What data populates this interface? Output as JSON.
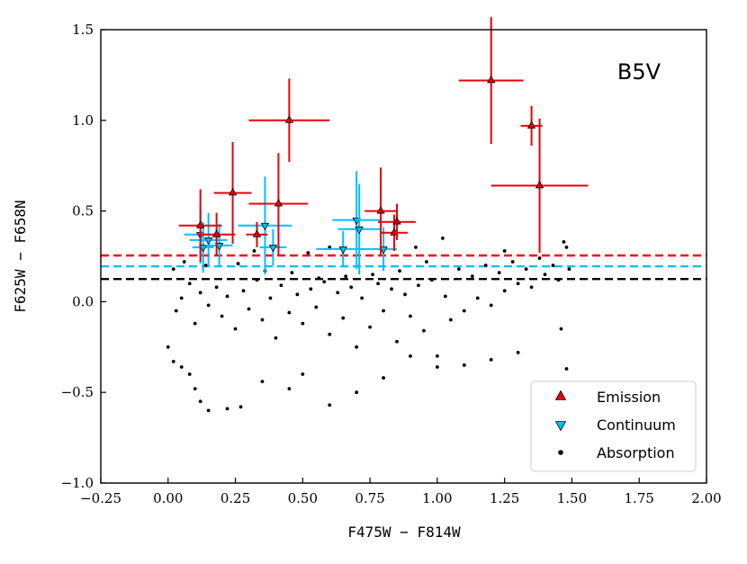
{
  "chart_data": {
    "type": "scatter",
    "title": "",
    "panel_label": "B5V",
    "xlabel": "F475W − F814W",
    "ylabel": "F625W − F658N",
    "xlim": [
      -0.25,
      2.0
    ],
    "ylim": [
      -1.0,
      1.5
    ],
    "x_ticks": [
      -0.25,
      0.0,
      0.25,
      0.5,
      0.75,
      1.0,
      1.25,
      1.5,
      1.75,
      2.0
    ],
    "x_tick_labels": [
      "−0.25",
      "0.00",
      "0.25",
      "0.50",
      "0.75",
      "1.00",
      "1.25",
      "1.50",
      "1.75",
      "2.00"
    ],
    "y_ticks": [
      -1.0,
      -0.5,
      0.0,
      0.5,
      1.0,
      1.5
    ],
    "y_tick_labels": [
      "−1.0",
      "−0.5",
      "0.0",
      "0.5",
      "1.0",
      "1.5"
    ],
    "grid": false,
    "legend_position": "bottom-right",
    "thresholds": [
      {
        "name": "emission-threshold",
        "y": 0.255,
        "color": "#ff0000",
        "style": "dashed"
      },
      {
        "name": "continuum-threshold",
        "y": 0.195,
        "color": "#00bfff",
        "style": "dashed"
      },
      {
        "name": "absorption-threshold",
        "y": 0.125,
        "color": "#000000",
        "style": "dashed"
      }
    ],
    "series": [
      {
        "name": "Emission",
        "marker": "triangle-up",
        "color": "#e8000b",
        "points": [
          {
            "x": 0.12,
            "y": 0.42,
            "xerr": 0.08,
            "yerr": 0.2
          },
          {
            "x": 0.18,
            "y": 0.37,
            "xerr": 0.07,
            "yerr": 0.12
          },
          {
            "x": 0.24,
            "y": 0.6,
            "xerr": 0.07,
            "yerr": 0.28
          },
          {
            "x": 0.33,
            "y": 0.37,
            "xerr": 0.04,
            "yerr": 0.07
          },
          {
            "x": 0.41,
            "y": 0.54,
            "xerr": 0.11,
            "yerr": 0.28
          },
          {
            "x": 0.45,
            "y": 1.0,
            "xerr": 0.15,
            "yerr": 0.23
          },
          {
            "x": 0.79,
            "y": 0.5,
            "xerr": 0.06,
            "yerr": 0.24
          },
          {
            "x": 0.84,
            "y": 0.38,
            "xerr": 0.05,
            "yerr": 0.1
          },
          {
            "x": 0.85,
            "y": 0.44,
            "xerr": 0.07,
            "yerr": 0.1
          },
          {
            "x": 1.2,
            "y": 1.22,
            "xerr": 0.12,
            "yerr": 0.35
          },
          {
            "x": 1.35,
            "y": 0.97,
            "xerr": 0.04,
            "yerr": 0.11
          },
          {
            "x": 1.38,
            "y": 0.64,
            "xerr": 0.18,
            "yerr": 0.37
          }
        ]
      },
      {
        "name": "Continuum",
        "marker": "triangle-down",
        "color": "#00bfff",
        "points": [
          {
            "x": 0.12,
            "y": 0.37,
            "xerr": 0.06,
            "yerr": 0.16
          },
          {
            "x": 0.13,
            "y": 0.3,
            "xerr": 0.04,
            "yerr": 0.14
          },
          {
            "x": 0.15,
            "y": 0.34,
            "xerr": 0.07,
            "yerr": 0.15
          },
          {
            "x": 0.19,
            "y": 0.31,
            "xerr": 0.05,
            "yerr": 0.12
          },
          {
            "x": 0.36,
            "y": 0.42,
            "xerr": 0.1,
            "yerr": 0.27
          },
          {
            "x": 0.39,
            "y": 0.3,
            "xerr": 0.05,
            "yerr": 0.1
          },
          {
            "x": 0.65,
            "y": 0.29,
            "xerr": 0.1,
            "yerr": 0.1
          },
          {
            "x": 0.7,
            "y": 0.45,
            "xerr": 0.09,
            "yerr": 0.27
          },
          {
            "x": 0.71,
            "y": 0.4,
            "xerr": 0.08,
            "yerr": 0.25
          },
          {
            "x": 0.8,
            "y": 0.29,
            "xerr": 0.05,
            "yerr": 0.12
          }
        ]
      },
      {
        "name": "Absorption",
        "marker": "dot",
        "color": "#000000",
        "points": [
          {
            "x": 0.05,
            "y": 0.02
          },
          {
            "x": 0.03,
            "y": -0.05
          },
          {
            "x": 0.08,
            "y": 0.1
          },
          {
            "x": 0.1,
            "y": -0.12
          },
          {
            "x": 0.12,
            "y": 0.05
          },
          {
            "x": 0.15,
            "y": -0.02
          },
          {
            "x": 0.18,
            "y": 0.08
          },
          {
            "x": 0.2,
            "y": -0.08
          },
          {
            "x": 0.22,
            "y": 0.03
          },
          {
            "x": 0.25,
            "y": -0.15
          },
          {
            "x": 0.28,
            "y": 0.06
          },
          {
            "x": 0.3,
            "y": -0.04
          },
          {
            "x": 0.33,
            "y": 0.12
          },
          {
            "x": 0.35,
            "y": -0.1
          },
          {
            "x": 0.38,
            "y": 0.02
          },
          {
            "x": 0.4,
            "y": -0.2
          },
          {
            "x": 0.42,
            "y": 0.09
          },
          {
            "x": 0.45,
            "y": -0.06
          },
          {
            "x": 0.48,
            "y": 0.04
          },
          {
            "x": 0.5,
            "y": -0.12
          },
          {
            "x": 0.53,
            "y": 0.07
          },
          {
            "x": 0.55,
            "y": -0.03
          },
          {
            "x": 0.58,
            "y": 0.11
          },
          {
            "x": 0.6,
            "y": -0.18
          },
          {
            "x": 0.63,
            "y": 0.05
          },
          {
            "x": 0.65,
            "y": -0.09
          },
          {
            "x": 0.68,
            "y": 0.08
          },
          {
            "x": 0.7,
            "y": -0.25
          },
          {
            "x": 0.72,
            "y": 0.02
          },
          {
            "x": 0.75,
            "y": -0.14
          },
          {
            "x": 0.78,
            "y": 0.1
          },
          {
            "x": 0.8,
            "y": -0.05
          },
          {
            "x": 0.83,
            "y": 0.07
          },
          {
            "x": 0.85,
            "y": -0.22
          },
          {
            "x": 0.88,
            "y": 0.04
          },
          {
            "x": 0.9,
            "y": -0.08
          },
          {
            "x": 0.93,
            "y": 0.09
          },
          {
            "x": 0.95,
            "y": -0.16
          },
          {
            "x": 0.98,
            "y": 0.12
          },
          {
            "x": 1.0,
            "y": -0.3
          },
          {
            "x": 1.03,
            "y": 0.03
          },
          {
            "x": 1.05,
            "y": -0.1
          },
          {
            "x": 1.08,
            "y": 0.18
          },
          {
            "x": 1.1,
            "y": -0.05
          },
          {
            "x": 1.13,
            "y": 0.14
          },
          {
            "x": 1.15,
            "y": 0.02
          },
          {
            "x": 1.18,
            "y": 0.2
          },
          {
            "x": 1.2,
            "y": -0.02
          },
          {
            "x": 1.23,
            "y": 0.16
          },
          {
            "x": 1.25,
            "y": 0.06
          },
          {
            "x": 1.28,
            "y": 0.22
          },
          {
            "x": 1.3,
            "y": 0.1
          },
          {
            "x": 1.33,
            "y": 0.18
          },
          {
            "x": 1.35,
            "y": 0.08
          },
          {
            "x": 1.38,
            "y": 0.24
          },
          {
            "x": 1.4,
            "y": 0.15
          },
          {
            "x": 1.43,
            "y": 0.2
          },
          {
            "x": 1.45,
            "y": 0.12
          },
          {
            "x": 1.47,
            "y": 0.33
          },
          {
            "x": 1.48,
            "y": 0.3
          },
          {
            "x": 1.49,
            "y": 0.18
          },
          {
            "x": 1.48,
            "y": -0.37
          },
          {
            "x": 1.46,
            "y": -0.15
          },
          {
            "x": 1.3,
            "y": -0.28
          },
          {
            "x": 1.2,
            "y": -0.32
          },
          {
            "x": 1.1,
            "y": -0.35
          },
          {
            "x": 1.0,
            "y": -0.36
          },
          {
            "x": 0.9,
            "y": -0.3
          },
          {
            "x": 0.8,
            "y": -0.42
          },
          {
            "x": 0.7,
            "y": -0.5
          },
          {
            "x": 0.6,
            "y": -0.57
          },
          {
            "x": 0.5,
            "y": -0.4
          },
          {
            "x": 0.45,
            "y": -0.48
          },
          {
            "x": 0.35,
            "y": -0.44
          },
          {
            "x": 0.27,
            "y": -0.58
          },
          {
            "x": 0.22,
            "y": -0.59
          },
          {
            "x": 0.15,
            "y": -0.6
          },
          {
            "x": 0.12,
            "y": -0.55
          },
          {
            "x": 0.1,
            "y": -0.48
          },
          {
            "x": 0.08,
            "y": -0.4
          },
          {
            "x": 0.05,
            "y": -0.36
          },
          {
            "x": 0.02,
            "y": -0.33
          },
          {
            "x": 0.0,
            "y": -0.25
          },
          {
            "x": 0.02,
            "y": 0.18
          },
          {
            "x": 0.06,
            "y": 0.22
          },
          {
            "x": 0.14,
            "y": 0.2
          },
          {
            "x": 0.26,
            "y": 0.21
          },
          {
            "x": 0.36,
            "y": 0.17
          },
          {
            "x": 0.46,
            "y": 0.16
          },
          {
            "x": 0.56,
            "y": 0.13
          },
          {
            "x": 0.66,
            "y": 0.14
          },
          {
            "x": 0.76,
            "y": 0.15
          },
          {
            "x": 0.86,
            "y": 0.17
          },
          {
            "x": 0.96,
            "y": 0.22
          },
          {
            "x": 1.02,
            "y": 0.35
          },
          {
            "x": 0.92,
            "y": 0.3
          },
          {
            "x": 0.6,
            "y": 0.3
          },
          {
            "x": 0.52,
            "y": 0.27
          },
          {
            "x": 0.32,
            "y": 0.28
          },
          {
            "x": 1.25,
            "y": 0.28
          }
        ]
      }
    ],
    "legend": [
      {
        "label": "Emission",
        "marker": "triangle-up",
        "color": "#e8000b"
      },
      {
        "label": "Continuum",
        "marker": "triangle-down",
        "color": "#00bfff"
      },
      {
        "label": "Absorption",
        "marker": "dot",
        "color": "#000000"
      }
    ]
  }
}
